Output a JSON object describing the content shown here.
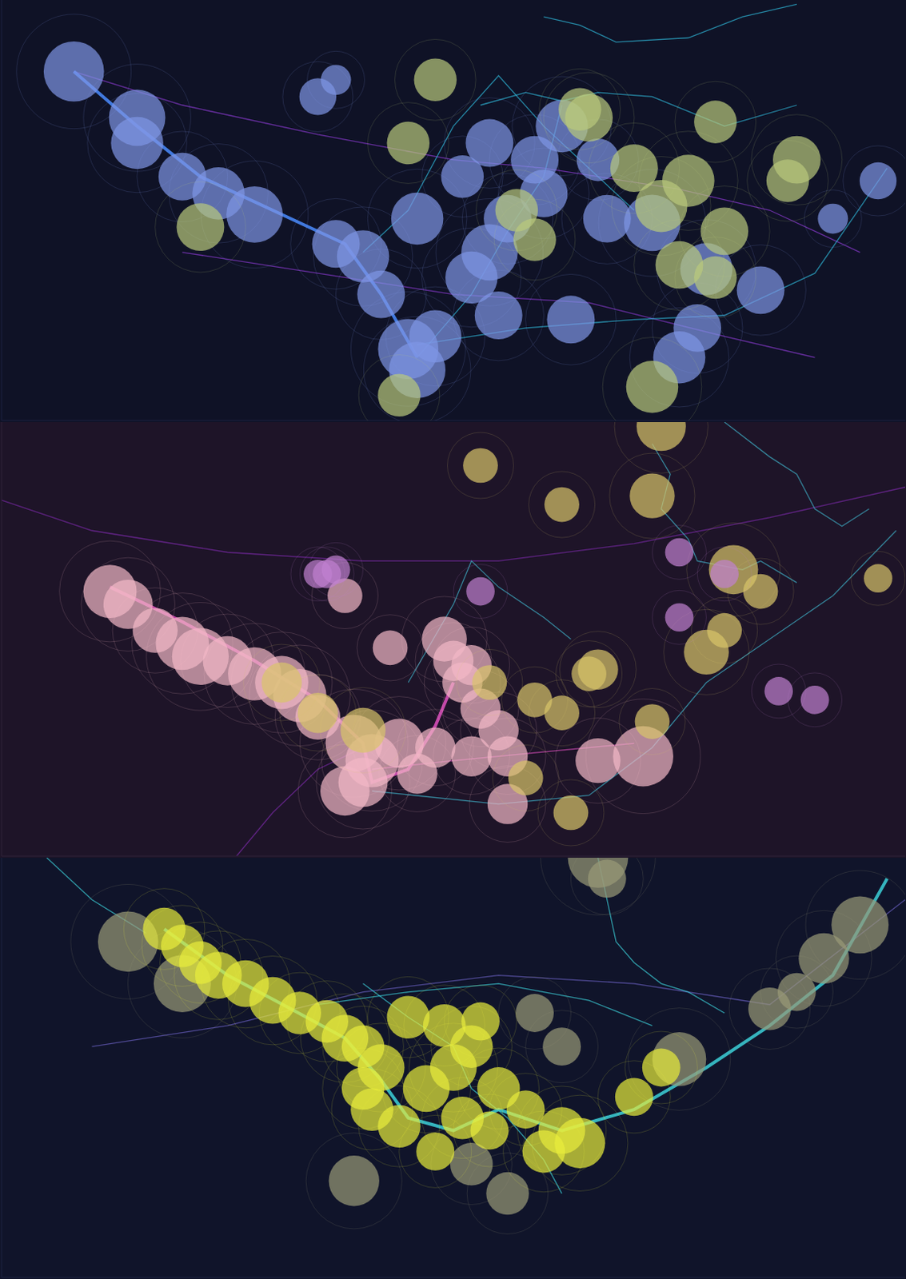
{
  "chart_data": [
    {
      "type": "bubble",
      "tick_labels": false,
      "xlim": [
        0,
        100
      ],
      "ylim": [
        0,
        100
      ],
      "series": [
        {
          "type": "scatter",
          "color": "#7f96e6",
          "x": [
            8,
            15,
            15,
            20,
            24,
            28,
            37,
            40,
            42,
            45,
            46,
            48,
            52,
            54,
            46,
            55,
            60,
            62,
            59,
            66,
            72,
            67,
            78,
            75,
            77,
            63,
            84,
            35,
            37,
            54,
            51,
            56,
            97,
            92
          ],
          "values": [
            83,
            72,
            66,
            58,
            54,
            49,
            42,
            39,
            30,
            17,
            12,
            20,
            34,
            40,
            48,
            25,
            54,
            70,
            62,
            62,
            47,
            48,
            36,
            15,
            22,
            24,
            31,
            77,
            81,
            66,
            58,
            48,
            57,
            48
          ],
          "size": [
            8,
            7,
            6,
            5,
            6,
            7,
            5,
            6,
            5,
            8,
            7,
            6,
            6,
            7,
            6,
            5,
            5,
            6,
            5,
            4,
            7,
            5,
            6,
            6,
            5,
            5,
            5,
            3,
            2,
            5,
            4,
            5,
            3,
            2
          ]
        },
        {
          "type": "scatter",
          "color": "#b9c97c",
          "x": [
            22,
            45,
            48,
            65,
            73,
            70,
            76,
            80,
            79,
            87,
            88,
            75,
            72,
            44,
            79,
            59,
            57,
            64
          ],
          "values": [
            46,
            66,
            81,
            72,
            51,
            60,
            57,
            45,
            34,
            57,
            62,
            37,
            8,
            6,
            71,
            43,
            50,
            74
          ],
          "size": [
            5,
            4,
            4,
            5,
            6,
            5,
            6,
            5,
            4,
            4,
            5,
            5,
            6,
            4,
            4,
            4,
            4,
            4
          ]
        },
        {
          "type": "line",
          "color": "#8a3ad0",
          "x": [
            8,
            20,
            35,
            50,
            60,
            75,
            85,
            95
          ],
          "values": [
            83,
            75,
            68,
            62,
            60,
            55,
            50,
            40
          ]
        },
        {
          "type": "line",
          "color": "#8a3ad0",
          "x": [
            20,
            35,
            50,
            65,
            80,
            90
          ],
          "values": [
            40,
            35,
            30,
            28,
            20,
            15
          ]
        },
        {
          "type": "line",
          "color": "#2fb8d8",
          "x": [
            46,
            52,
            56,
            60,
            62
          ],
          "values": [
            15,
            30,
            45,
            58,
            75
          ]
        },
        {
          "type": "line",
          "color": "#2fb8d8",
          "x": [
            46,
            58,
            70,
            80,
            90,
            98
          ],
          "values": [
            18,
            22,
            24,
            25,
            35,
            60
          ]
        },
        {
          "type": "line",
          "color": "#2fb8d8",
          "x": [
            53,
            58,
            62,
            66,
            72,
            80,
            88
          ],
          "values": [
            75,
            78,
            76,
            78,
            77,
            70,
            75
          ]
        },
        {
          "type": "line",
          "color": "#2fb8d8",
          "x": [
            60,
            64,
            68,
            76,
            82,
            88
          ],
          "values": [
            96,
            94,
            90,
            91,
            96,
            99
          ]
        },
        {
          "type": "line",
          "color": "#2fb8d8",
          "x": [
            40,
            45,
            50,
            55,
            60,
            65,
            70
          ],
          "values": [
            40,
            50,
            70,
            82,
            70,
            60,
            50
          ]
        },
        {
          "type": "line",
          "color": "#4a8cff",
          "x": [
            8,
            15,
            22,
            30,
            38,
            42,
            46
          ],
          "values": [
            83,
            70,
            58,
            50,
            42,
            30,
            15
          ]
        }
      ]
    },
    {
      "type": "bubble",
      "tick_labels": false,
      "xlim": [
        0,
        100
      ],
      "ylim": [
        0,
        100
      ],
      "series": [
        {
          "type": "scatter",
          "color": "#f2b8c6",
          "x": [
            12,
            14,
            17,
            20,
            22,
            25,
            28,
            31,
            33,
            35,
            39,
            41,
            38,
            40,
            44,
            49,
            50,
            52,
            51,
            53,
            55,
            52,
            46,
            56,
            71,
            66,
            56,
            48,
            43,
            38
          ],
          "values": [
            61,
            58,
            52,
            49,
            46,
            45,
            42,
            40,
            37,
            32,
            26,
            22,
            15,
            17,
            26,
            50,
            45,
            44,
            40,
            34,
            29,
            23,
            19,
            23,
            23,
            22,
            12,
            25,
            48,
            60
          ],
          "size": [
            7,
            6,
            5,
            7,
            8,
            6,
            7,
            7,
            7,
            5,
            8,
            7,
            6,
            6,
            6,
            5,
            4,
            4,
            4,
            4,
            4,
            4,
            4,
            4,
            9,
            5,
            4,
            4,
            3,
            3
          ]
        },
        {
          "type": "scatter",
          "color": "#d9c46a",
          "x": [
            40,
            35,
            31,
            54,
            59,
            62,
            66,
            81,
            72,
            65,
            58,
            63,
            72,
            78,
            80,
            84,
            97,
            53,
            62,
            73
          ],
          "values": [
            29,
            33,
            40,
            40,
            36,
            33,
            43,
            66,
            83,
            42,
            18,
            10,
            31,
            47,
            52,
            61,
            64,
            90,
            81,
            99
          ],
          "size": [
            5,
            4,
            4,
            3,
            3,
            3,
            4,
            6,
            5,
            3,
            3,
            3,
            3,
            5,
            3,
            3,
            2,
            3,
            3,
            6
          ]
        },
        {
          "type": "scatter",
          "color": "#c080d0",
          "x": [
            35,
            36,
            37,
            53,
            75,
            80,
            75,
            86,
            90
          ],
          "values": [
            65,
            65,
            66,
            61,
            70,
            65,
            55,
            38,
            36
          ],
          "size": [
            2,
            2,
            2,
            2,
            2,
            2,
            2,
            2,
            2
          ]
        },
        {
          "type": "line",
          "color": "#7a2aa8",
          "x": [
            0,
            10,
            25,
            40,
            55,
            70,
            85,
            100
          ],
          "values": [
            82,
            75,
            70,
            68,
            68,
            72,
            78,
            85
          ]
        },
        {
          "type": "line",
          "color": "#7a2aa8",
          "x": [
            26,
            30,
            35,
            40
          ],
          "values": [
            0,
            10,
            20,
            25
          ]
        },
        {
          "type": "line",
          "color": "#3fb0c8",
          "x": [
            41,
            55,
            65,
            72,
            78,
            85,
            92,
            99
          ],
          "values": [
            15,
            12,
            14,
            25,
            40,
            50,
            60,
            75
          ]
        },
        {
          "type": "line",
          "color": "#3fb0c8",
          "x": [
            72,
            74,
            73,
            76,
            77,
            82,
            84,
            88
          ],
          "values": [
            95,
            88,
            80,
            73,
            68,
            66,
            68,
            63
          ]
        },
        {
          "type": "line",
          "color": "#3fb0c8",
          "x": [
            45,
            50,
            52,
            55,
            60,
            63
          ],
          "values": [
            40,
            58,
            68,
            62,
            55,
            50
          ]
        },
        {
          "type": "line",
          "color": "#3fb0c8",
          "x": [
            80,
            85,
            88,
            90,
            93,
            96
          ],
          "values": [
            100,
            92,
            88,
            80,
            76,
            80
          ]
        },
        {
          "type": "line",
          "color": "#e050c0",
          "x": [
            41,
            50,
            60,
            70
          ],
          "values": [
            20,
            22,
            24,
            26
          ]
        },
        {
          "type": "line",
          "color": "#e050c0",
          "x": [
            12,
            20,
            28,
            35,
            40,
            41,
            45,
            48,
            50
          ],
          "values": [
            62,
            54,
            45,
            36,
            26,
            17,
            20,
            30,
            40
          ]
        }
      ]
    },
    {
      "type": "bubble",
      "tick_labels": false,
      "xlim": [
        0,
        100
      ],
      "ylim": [
        0,
        100
      ],
      "series": [
        {
          "type": "scatter",
          "color": "#9a9a78",
          "x": [
            14,
            20,
            66,
            95,
            91,
            85,
            75,
            39,
            52,
            56,
            88,
            67,
            59,
            62
          ],
          "values": [
            80,
            70,
            100,
            84,
            76,
            64,
            52,
            23,
            27,
            20,
            68,
            95,
            63,
            55
          ],
          "size": [
            10,
            9,
            10,
            9,
            7,
            5,
            8,
            7,
            5,
            5,
            4,
            4,
            4,
            4
          ]
        },
        {
          "type": "scatter",
          "color": "#e8ec3c",
          "x": [
            18,
            20,
            22,
            24,
            27,
            30,
            33,
            36,
            38,
            40,
            42,
            40,
            41,
            44,
            47,
            50,
            52,
            49,
            45,
            55,
            58,
            62,
            64,
            60,
            70,
            73,
            54,
            48,
            51,
            53
          ],
          "values": [
            83,
            79,
            75,
            72,
            70,
            66,
            63,
            61,
            57,
            55,
            50,
            45,
            40,
            36,
            45,
            50,
            55,
            60,
            62,
            45,
            40,
            35,
            32,
            30,
            43,
            50,
            35,
            30,
            38,
            61
          ],
          "size": [
            5,
            5,
            5,
            6,
            6,
            6,
            5,
            5,
            6,
            5,
            6,
            5,
            5,
            5,
            6,
            6,
            5,
            5,
            5,
            5,
            4,
            6,
            7,
            5,
            4,
            4,
            4,
            4,
            5,
            4
          ]
        },
        {
          "type": "line",
          "color": "#6a60c0",
          "x": [
            10,
            25,
            40,
            55,
            70,
            85,
            100
          ],
          "values": [
            55,
            60,
            68,
            72,
            70,
            65,
            90
          ]
        },
        {
          "type": "line",
          "color": "#3cd0d8",
          "x": [
            5,
            10,
            16
          ],
          "values": [
            100,
            90,
            82
          ]
        },
        {
          "type": "line",
          "color": "#3cd0d8",
          "x": [
            66,
            67,
            68,
            70,
            73,
            76,
            80
          ],
          "values": [
            100,
            90,
            80,
            75,
            70,
            68,
            63
          ]
        },
        {
          "type": "line",
          "color": "#3cd0d8",
          "x": [
            40,
            45,
            50,
            52,
            56,
            60,
            62
          ],
          "values": [
            70,
            62,
            55,
            45,
            38,
            28,
            20
          ]
        },
        {
          "type": "line",
          "color": "#3cd0d8",
          "x": [
            35,
            45,
            55,
            65,
            72
          ],
          "values": [
            65,
            68,
            70,
            66,
            60
          ]
        },
        {
          "type": "line",
          "color": "#3cd0d8",
          "x": [
            18,
            25,
            32,
            38,
            42,
            45,
            50,
            55,
            62,
            70,
            78,
            85,
            92,
            98
          ],
          "values": [
            83,
            72,
            64,
            57,
            47,
            38,
            35,
            40,
            35,
            40,
            50,
            60,
            72,
            95
          ]
        }
      ]
    }
  ]
}
